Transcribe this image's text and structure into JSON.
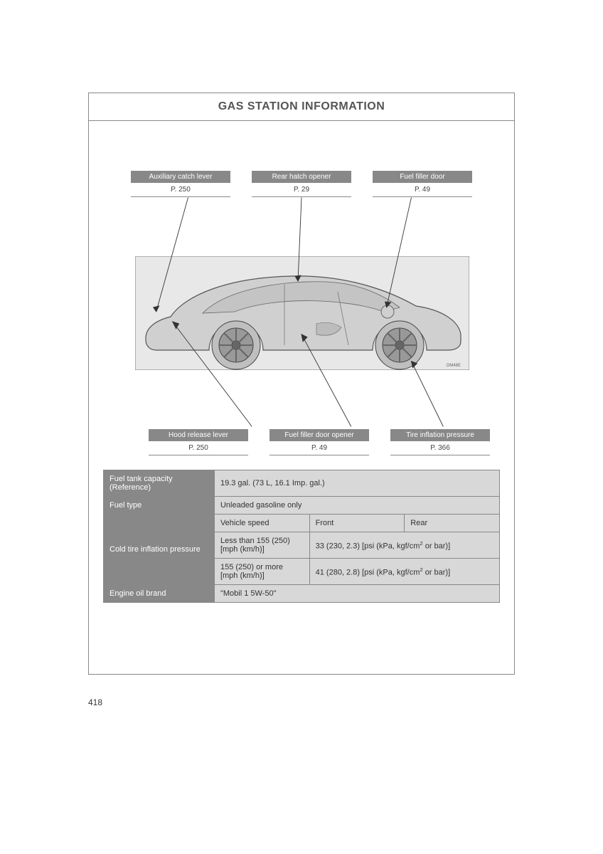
{
  "page_number": "418",
  "title": "GAS STATION INFORMATION",
  "callouts_top": [
    {
      "label": "Auxiliary catch lever",
      "page": "P. 250"
    },
    {
      "label": "Rear hatch opener",
      "page": "P. 29"
    },
    {
      "label": "Fuel filler door",
      "page": "P. 49"
    }
  ],
  "callouts_bottom": [
    {
      "label": "Hood release lever",
      "page": "P. 250"
    },
    {
      "label": "Fuel filler door opener",
      "page": "P. 49"
    },
    {
      "label": "Tire inflation pressure",
      "page": "P. 366"
    }
  ],
  "car_image_tag": "OM48E",
  "spec": {
    "fuel_tank_label": "Fuel tank capacity (Reference)",
    "fuel_tank_value": "19.3 gal. (73 L, 16.1 Imp. gal.)",
    "fuel_type_label": "Fuel type",
    "fuel_type_value": "Unleaded gasoline only",
    "cold_tire_label": "Cold tire inflation pressure",
    "col_speed": "Vehicle speed",
    "col_front": "Front",
    "col_rear": "Rear",
    "row1_speed": "Less than 155 (250)\n[mph (km/h)]",
    "row1_val": "33 (230, 2.3) [psi (kPa, kgf/cm² or bar)]",
    "row2_speed": "155 (250) or more\n[mph (km/h)]",
    "row2_val": "41 (280, 2.8) [psi (kPa, kgf/cm² or bar)]",
    "oil_label": "Engine oil brand",
    "oil_value": "\"Mobil 1  5W-50\""
  },
  "styling": {
    "frame_border": "#888888",
    "header_bg": "#888888",
    "header_text": "#ffffff",
    "sub_bg": "#d8d8d8",
    "body_text": "#333333",
    "title_fontsize": 16,
    "body_fontsize": 11,
    "callout_fontsize": 10
  }
}
